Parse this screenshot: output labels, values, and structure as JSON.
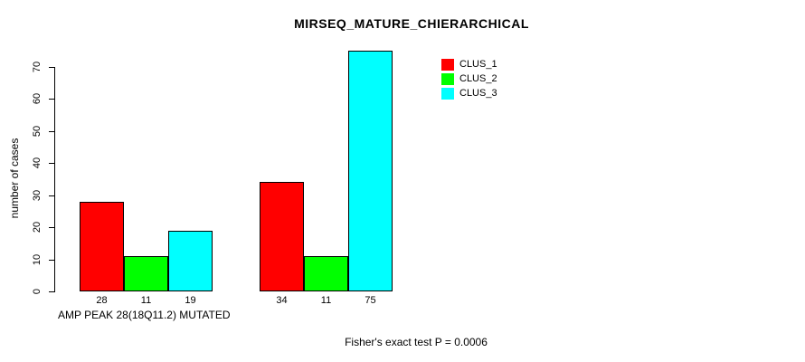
{
  "chart_data": {
    "type": "bar",
    "title": "MIRSEQ_MATURE_CHIERARCHICAL",
    "ylabel": "number of cases",
    "xlabel": "AMP PEAK 28(18Q11.2) MUTATED",
    "annotation": "Fisher's exact test P = 0.0006",
    "ylim": [
      0,
      70
    ],
    "yticks": [
      0,
      10,
      20,
      30,
      40,
      50,
      60,
      70
    ],
    "grid": false,
    "legend_position": "top-right",
    "background_color": "#ffffff",
    "axis_color": "#000000",
    "bar_border_color": "#000000",
    "series": [
      {
        "name": "CLUS_1",
        "color": "#ff0000"
      },
      {
        "name": "CLUS_2",
        "color": "#00ff00"
      },
      {
        "name": "CLUS_3",
        "color": "#00ffff"
      }
    ],
    "groups": [
      {
        "values": [
          28,
          11,
          19
        ],
        "bar_labels": [
          "28",
          "11",
          "19"
        ]
      },
      {
        "values": [
          34,
          11,
          75
        ],
        "bar_labels": [
          "34",
          "11",
          "75"
        ]
      }
    ]
  }
}
